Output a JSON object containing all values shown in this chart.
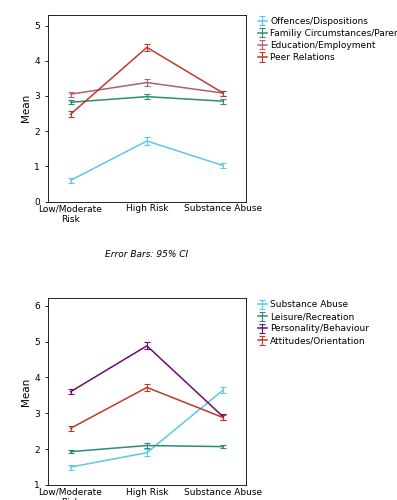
{
  "x_labels": [
    "Low/Moderate\nRisk",
    "High Risk",
    "Substance Abuse"
  ],
  "x_positions": [
    0,
    1,
    2
  ],
  "top": {
    "series": [
      {
        "label": "Offences/Dispositions",
        "color": "#5bc8e8",
        "values": [
          0.6,
          1.72,
          1.02
        ],
        "errors": [
          0.07,
          0.12,
          0.08
        ]
      },
      {
        "label": "Familiy Circumstances/Parenting",
        "color": "#2e8b74",
        "values": [
          2.82,
          2.98,
          2.85
        ],
        "errors": [
          0.06,
          0.08,
          0.07
        ]
      },
      {
        "label": "Education/Employment",
        "color": "#b06070",
        "values": [
          3.05,
          3.38,
          3.08
        ],
        "errors": [
          0.07,
          0.1,
          0.07
        ]
      },
      {
        "label": "Peer Relations",
        "color": "#c0392b",
        "values": [
          2.48,
          4.38,
          3.08
        ],
        "errors": [
          0.08,
          0.1,
          0.07
        ]
      }
    ],
    "ylim": [
      0,
      5.3
    ],
    "yticks": [
      0,
      1,
      2,
      3,
      4,
      5
    ],
    "ylabel": "Mean"
  },
  "bottom": {
    "series": [
      {
        "label": "Substance Abuse",
        "color": "#5bc8e8",
        "values": [
          1.5,
          1.9,
          3.65
        ],
        "errors": [
          0.07,
          0.1,
          0.09
        ]
      },
      {
        "label": "Leisure/Recreation",
        "color": "#2e8b74",
        "values": [
          1.93,
          2.1,
          2.07
        ],
        "errors": [
          0.05,
          0.06,
          0.05
        ]
      },
      {
        "label": "Personality/Behaviour",
        "color": "#6b0d6b",
        "values": [
          3.6,
          4.88,
          2.9
        ],
        "errors": [
          0.07,
          0.1,
          0.08
        ]
      },
      {
        "label": "Attitudes/Orientation",
        "color": "#c0392b",
        "values": [
          2.58,
          3.72,
          2.88
        ],
        "errors": [
          0.07,
          0.09,
          0.08
        ]
      }
    ],
    "ylim": [
      1,
      6.2
    ],
    "yticks": [
      1,
      2,
      3,
      4,
      5,
      6
    ],
    "ylabel": "Mean"
  },
  "error_bar_label": "Error Bars: 95% CI",
  "legend_fontsize": 6.5,
  "axis_fontsize": 7.5,
  "tick_fontsize": 6.5,
  "background_color": "#ffffff"
}
